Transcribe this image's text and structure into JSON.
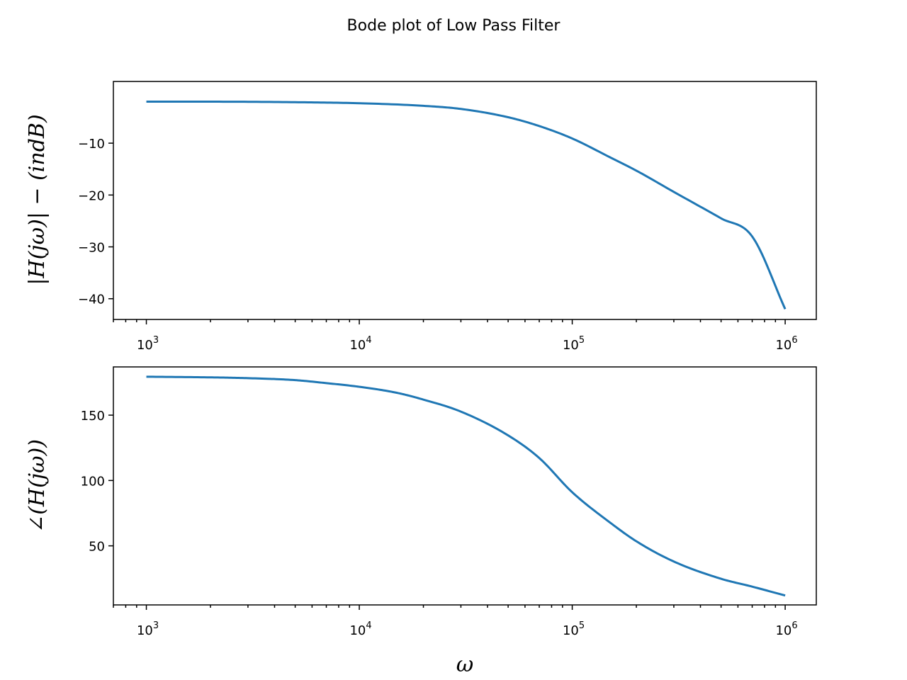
{
  "title": "Bode plot of Low Pass Filter",
  "line_color": "#1f77b4",
  "chart_data": [
    {
      "type": "line",
      "panel": "magnitude",
      "xscale": "log",
      "xlim": [
        700,
        1400000
      ],
      "ylim": [
        -44,
        1.9
      ],
      "xlabel": "",
      "ylabel": "|H(jω)| − (indB)",
      "xticks": [
        {
          "value": 1000,
          "base": "10",
          "exp": "3"
        },
        {
          "value": 10000,
          "base": "10",
          "exp": "4"
        },
        {
          "value": 100000,
          "base": "10",
          "exp": "5"
        },
        {
          "value": 1000000,
          "base": "10",
          "exp": "6"
        }
      ],
      "yticks": [
        {
          "value": -10,
          "label": "−10"
        },
        {
          "value": -20,
          "label": "−20"
        },
        {
          "value": -30,
          "label": "−30"
        },
        {
          "value": -40,
          "label": "−40"
        }
      ],
      "series": [
        {
          "x": [
            1000,
            2000,
            5000,
            10000,
            20000,
            30000,
            50000,
            70000,
            100000,
            150000,
            200000,
            300000,
            500000,
            700000,
            1000000
          ],
          "y": [
            -2.0,
            -2.0,
            -2.1,
            -2.3,
            -2.8,
            -3.4,
            -5.0,
            -6.7,
            -9.1,
            -12.7,
            -15.3,
            -19.4,
            -24.5,
            -28.0,
            -42.0
          ]
        }
      ]
    },
    {
      "type": "line",
      "panel": "phase",
      "xscale": "log",
      "xlim": [
        700,
        1400000
      ],
      "ylim": [
        4.8,
        186.9
      ],
      "xlabel": "ω",
      "ylabel": "∠(H(jω))",
      "xticks": [
        {
          "value": 1000,
          "base": "10",
          "exp": "3"
        },
        {
          "value": 10000,
          "base": "10",
          "exp": "4"
        },
        {
          "value": 100000,
          "base": "10",
          "exp": "5"
        },
        {
          "value": 1000000,
          "base": "10",
          "exp": "6"
        }
      ],
      "yticks": [
        {
          "value": 150,
          "label": "150"
        },
        {
          "value": 100,
          "label": "100"
        },
        {
          "value": 50,
          "label": "50"
        }
      ],
      "series": [
        {
          "x": [
            1000,
            2000,
            3000,
            5000,
            7000,
            10000,
            15000,
            20000,
            30000,
            50000,
            70000,
            100000,
            150000,
            200000,
            300000,
            500000,
            700000,
            1000000
          ],
          "y": [
            179.4,
            178.9,
            178.3,
            176.8,
            174.5,
            171.7,
            167.1,
            161.9,
            152.7,
            134.5,
            117.2,
            91.0,
            68.0,
            53.5,
            38.0,
            24.8,
            18.8,
            12.0
          ]
        }
      ]
    }
  ]
}
